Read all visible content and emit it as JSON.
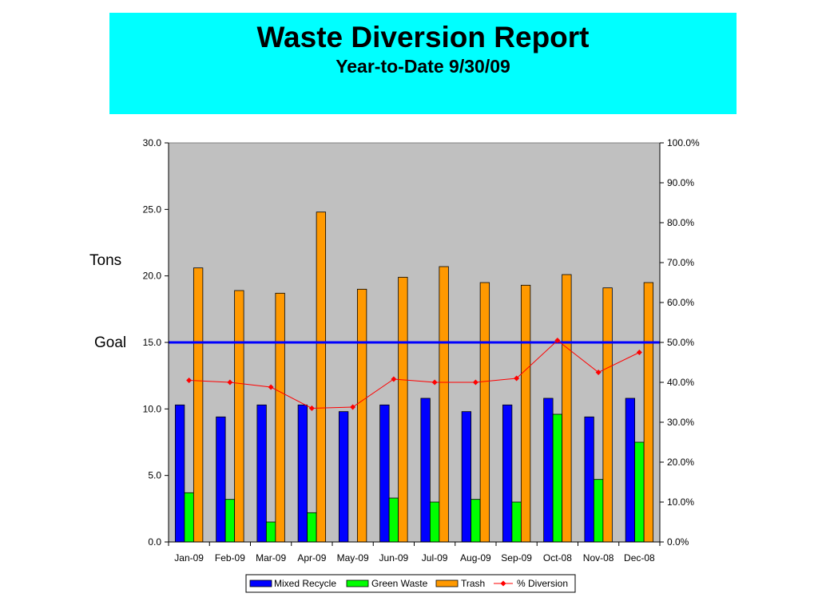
{
  "header": {
    "title": "Waste Diversion Report",
    "subtitle": "Year-to-Date 9/30/09",
    "background_color": "#00ffff"
  },
  "labels": {
    "y_left": "Tons",
    "goal": "Goal"
  },
  "chart_data": {
    "type": "bar",
    "categories": [
      "Jan-09",
      "Feb-09",
      "Mar-09",
      "Apr-09",
      "May-09",
      "Jun-09",
      "Jul-09",
      "Aug-09",
      "Sep-09",
      "Oct-08",
      "Nov-08",
      "Dec-08"
    ],
    "series": [
      {
        "name": "Mixed Recycle",
        "type": "bar",
        "axis": "left",
        "color": "#0000ff",
        "values": [
          10.3,
          9.4,
          10.3,
          10.3,
          9.8,
          10.3,
          10.8,
          9.8,
          10.3,
          10.8,
          9.4,
          10.8
        ]
      },
      {
        "name": "Green Waste",
        "type": "bar",
        "axis": "left",
        "color": "#00ff00",
        "values": [
          3.7,
          3.2,
          1.5,
          2.2,
          0,
          3.3,
          3.0,
          3.2,
          3.0,
          9.6,
          4.7,
          7.5
        ]
      },
      {
        "name": "Trash",
        "type": "bar",
        "axis": "left",
        "color": "#ff9900",
        "values": [
          20.6,
          18.9,
          18.7,
          24.8,
          19.0,
          19.9,
          20.7,
          19.5,
          19.3,
          20.1,
          19.1,
          19.5
        ]
      },
      {
        "name": "% Diversion",
        "type": "line",
        "axis": "right",
        "color": "#ff0000",
        "values": [
          40.5,
          40.0,
          38.8,
          33.5,
          33.8,
          40.8,
          40.0,
          40.0,
          41.0,
          50.5,
          42.5,
          47.5
        ]
      }
    ],
    "goal_line": {
      "value": 15.0,
      "axis": "left",
      "color": "#0000ff"
    },
    "y_left": {
      "min": 0,
      "max": 30,
      "ticks": [
        "0.0",
        "5.0",
        "10.0",
        "15.0",
        "20.0",
        "25.0",
        "30.0"
      ]
    },
    "y_right": {
      "min": 0,
      "max": 100,
      "ticks": [
        "0.0%",
        "10.0%",
        "20.0%",
        "30.0%",
        "40.0%",
        "50.0%",
        "60.0%",
        "70.0%",
        "80.0%",
        "90.0%",
        "100.0%"
      ]
    },
    "plot_background": "#c0c0c0",
    "legend_position": "bottom",
    "grid": false
  }
}
